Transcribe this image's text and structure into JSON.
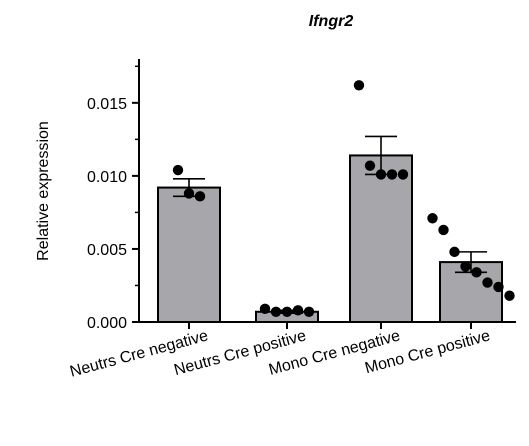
{
  "chart_data": {
    "type": "bar",
    "title": "Ifngr2",
    "xlabel": "",
    "ylabel": "Relative expression",
    "ylim": [
      0,
      0.018
    ],
    "yticks": [
      0.0,
      0.005,
      0.01,
      0.015
    ],
    "ytick_labels": [
      "0.000",
      "0.005",
      "0.010",
      "0.015"
    ],
    "categories": [
      "Neutrs Cre negative",
      "Neutrs Cre positive",
      "Mono Cre negative",
      "Mono Cre positive"
    ],
    "values": [
      0.0092,
      0.0007,
      0.0114,
      0.0041
    ],
    "error_sem": [
      0.0006,
      0.0001,
      0.0013,
      0.0007
    ],
    "points": [
      [
        0.0104,
        0.0088,
        0.0086
      ],
      [
        0.0009,
        0.0007,
        0.0007,
        0.0008,
        0.0007
      ],
      [
        0.0162,
        0.0107,
        0.0101,
        0.0101,
        0.0101
      ],
      [
        0.0071,
        0.0063,
        0.0048,
        0.0038,
        0.0034,
        0.0027,
        0.0024,
        0.0018
      ]
    ],
    "bar_color": "#a6a6ab",
    "grid": false,
    "legend": "none"
  }
}
